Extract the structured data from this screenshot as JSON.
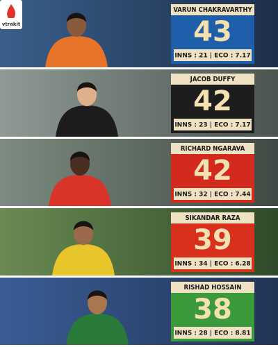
{
  "brand": "vtrakit",
  "players": [
    {
      "name": "VARUN CHAKRAVARTHY",
      "wickets": 43,
      "stats": "INNS : 21 | ECO : 7.17",
      "color": "#1f5ea8"
    },
    {
      "name": "JACOB DUFFY",
      "wickets": 42,
      "stats": "INNS : 23 | ECO : 7.17",
      "color": "#1d1d1d"
    },
    {
      "name": "RICHARD NGARAVA",
      "wickets": 42,
      "stats": "INNS : 32 | ECO : 7.44",
      "color": "#d32a1e"
    },
    {
      "name": "SIKANDAR RAZA",
      "wickets": 39,
      "stats": "INNS : 34 | ECO : 6.28",
      "color": "#d8301d"
    },
    {
      "name": "RISHAD HOSSAIN",
      "wickets": 38,
      "stats": "INNS : 28 | ECO : 8.81",
      "color": "#3a9a3c"
    }
  ]
}
